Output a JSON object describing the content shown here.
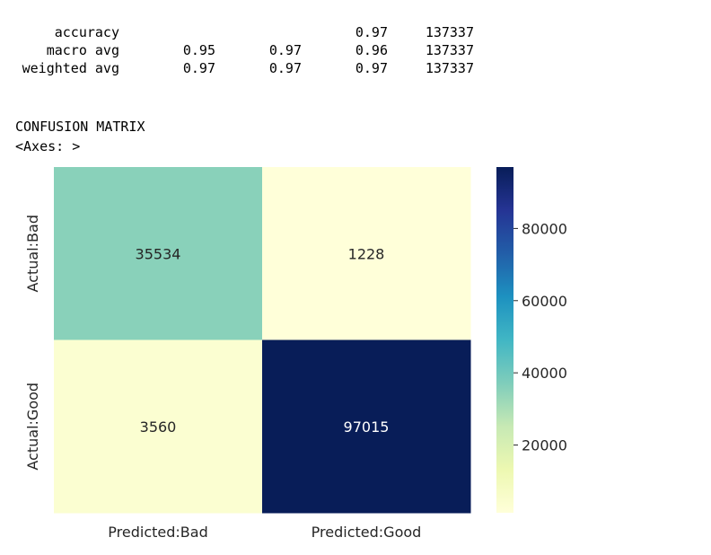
{
  "report": {
    "rows": [
      {
        "label": "accuracy",
        "precision": "",
        "recall": "",
        "f1": "0.97",
        "support": "137337"
      },
      {
        "label": "macro avg",
        "precision": "0.95",
        "recall": "0.97",
        "f1": "0.96",
        "support": "137337"
      },
      {
        "label": "weighted avg",
        "precision": "0.97",
        "recall": "0.97",
        "f1": "0.97",
        "support": "137337"
      }
    ]
  },
  "output": {
    "heading": "CONFUSION MATRIX",
    "axes_repr": "<Axes: >"
  },
  "chart_data": {
    "type": "heatmap",
    "colormap": "YlGnBu",
    "x_categories": [
      "Predicted:Bad",
      "Predicted:Good"
    ],
    "y_categories": [
      "Actual:Bad",
      "Actual:Good"
    ],
    "values": [
      [
        35534,
        1228
      ],
      [
        3560,
        97015
      ]
    ],
    "cell_labels": [
      [
        "35534",
        "1228"
      ],
      [
        "3560",
        "97015"
      ]
    ],
    "colorbar": {
      "range": [
        1228,
        97015
      ],
      "ticks": [
        20000,
        40000,
        60000,
        80000
      ],
      "tick_labels": [
        "20000",
        "40000",
        "60000",
        "80000"
      ]
    }
  }
}
